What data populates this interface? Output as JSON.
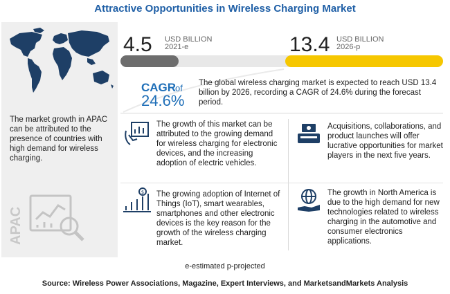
{
  "title": "Attractive Opportunities in Wireless Charging Market",
  "left_panel": {
    "text": "The market growth in APAC can be attributed to the presence of countries with high demand for wireless charging.",
    "region_label": "APAC"
  },
  "stats": {
    "start": {
      "value": "4.5",
      "unit": "USD BILLION",
      "year": "2021-e"
    },
    "end": {
      "value": "13.4",
      "unit": "USD BILLION",
      "year": "2026-p"
    },
    "colors": {
      "start_bar": "#6d6d6d",
      "end_bar": "#f6c700"
    }
  },
  "cagr": {
    "label": "CAGR",
    "of": "of",
    "value": "24.6%",
    "text": "The global wireless charging market is expected to reach USD 13.4 billion by 2026, recording a CAGR of 24.6% during the forecast period."
  },
  "items": [
    {
      "icon": "chart-document-icon",
      "text": "The growth of this market can be attributed to the growing demand for wireless charging for electronic devices, and the increasing adoption of electric vehicles."
    },
    {
      "icon": "handshake-icon",
      "text": "Acquisitions, collaborations, and product launches will offer lucrative opportunities for market players in the next five years."
    },
    {
      "icon": "growth-chart-icon",
      "text": "The growing adoption of Internet of Things (IoT), smart wearables, smartphones and other electronic devices is the key reason for the growth of the wireless charging market."
    },
    {
      "icon": "globe-hand-icon",
      "text": "The growth in North America is due to the high demand for new technologies related to wireless charging in the automotive and consumer electronics applications."
    }
  ],
  "footnote": "e-estimated p-projected",
  "source": "Source: Wireless Power Associations, Magazine, Expert Interviews, and MarketsandMarkets Analysis"
}
